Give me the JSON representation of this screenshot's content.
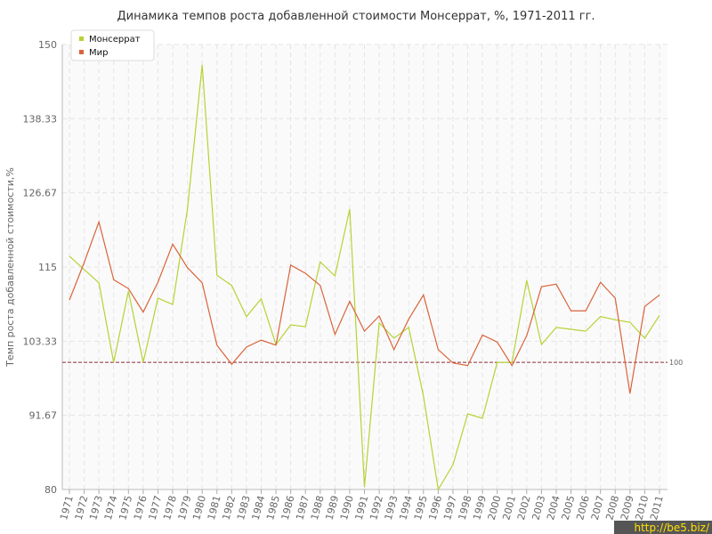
{
  "chart_data": {
    "type": "line",
    "title": "Динамика темпов роста добавленной стоимости Монсеррат, %, 1971-2011 гг.",
    "y_label": "Темп роста добавленной стоимости,%",
    "categories": [
      "1971",
      "1972",
      "1973",
      "1974",
      "1975",
      "1976",
      "1977",
      "1978",
      "1979",
      "1980",
      "1981",
      "1982",
      "1983",
      "1984",
      "1985",
      "1986",
      "1987",
      "1988",
      "1989",
      "1990",
      "1991",
      "1992",
      "1993",
      "1994",
      "1995",
      "1996",
      "1997",
      "1998",
      "1999",
      "2000",
      "2001",
      "2002",
      "2003",
      "2004",
      "2005",
      "2006",
      "2007",
      "2008",
      "2009",
      "2010",
      "2011"
    ],
    "series": [
      {
        "name": "Монсеррат",
        "color": "#b5d334",
        "values": [
          116.7,
          114.6,
          112.5,
          100,
          111.2,
          100,
          110.1,
          109.1,
          124.1,
          146.8,
          113.7,
          112.1,
          107.2,
          110,
          102.8,
          105.9,
          105.6,
          115.8,
          113.6,
          124.1,
          80.4,
          106.2,
          103.8,
          105.5,
          94.7,
          80,
          83.9,
          91.9,
          91.2,
          100,
          100,
          112.9,
          102.8,
          105.5,
          105.2,
          104.9,
          107.2,
          106.7,
          106.3,
          103.8,
          107.4
        ]
      },
      {
        "name": "Мир",
        "color": "#d9643a",
        "values": [
          109.8,
          115.7,
          122.1,
          113,
          111.6,
          107.9,
          112.6,
          118.6,
          114.9,
          112.5,
          102.7,
          99.7,
          102.4,
          103.5,
          102.7,
          115.3,
          114,
          112.1,
          104.4,
          109.6,
          104.9,
          107.3,
          102,
          106.8,
          110.6,
          102,
          99.9,
          99.5,
          104.3,
          103.2,
          99.5,
          104.2,
          111.9,
          112.3,
          108.1,
          108.1,
          112.6,
          110.1,
          95.1,
          108.8,
          110.6
        ]
      }
    ],
    "ylim": [
      80,
      150
    ],
    "yticks": [
      80,
      91.67,
      103.33,
      115,
      126.67,
      138.33,
      150
    ],
    "reference_line": 100,
    "reference_color": "#8b2a3a",
    "grid": true,
    "legend_position": "top-left",
    "watermark": "http://be5.biz/"
  }
}
